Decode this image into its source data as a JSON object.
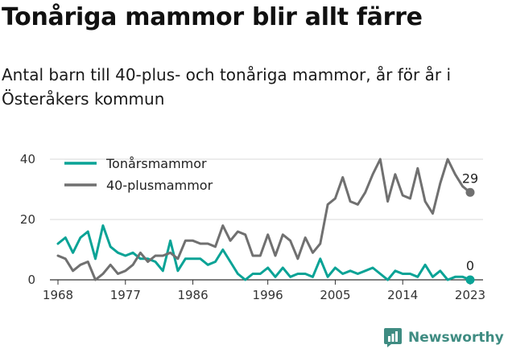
{
  "title": "Tonåriga mammor blir allt färre",
  "subtitle": "Antal barn till 40-plus- och tonåriga mammor, år för år i Österåkers kommun",
  "brand": {
    "name": "Newsworthy",
    "icon": "bar-chart-logo-icon"
  },
  "chart_data": {
    "type": "line",
    "title": "",
    "xlabel": "",
    "ylabel": "",
    "xlim": [
      1968,
      2023
    ],
    "ylim": [
      0,
      40
    ],
    "yticks": [
      0,
      20,
      40
    ],
    "xticks": [
      1968,
      1977,
      1986,
      1996,
      2005,
      2014,
      2023
    ],
    "grid": "horizontal",
    "legend_position": "top-left",
    "x": [
      1968,
      1969,
      1970,
      1971,
      1972,
      1973,
      1974,
      1975,
      1976,
      1977,
      1978,
      1979,
      1980,
      1981,
      1982,
      1983,
      1984,
      1985,
      1986,
      1987,
      1988,
      1989,
      1990,
      1991,
      1992,
      1993,
      1994,
      1995,
      1996,
      1997,
      1998,
      1999,
      2000,
      2001,
      2002,
      2003,
      2004,
      2005,
      2006,
      2007,
      2008,
      2009,
      2010,
      2011,
      2012,
      2013,
      2014,
      2015,
      2016,
      2017,
      2018,
      2019,
      2020,
      2021,
      2022,
      2023
    ],
    "series": [
      {
        "name": "Tonårsmammor",
        "color": "#0aa396",
        "values": [
          12,
          14,
          9,
          14,
          16,
          7,
          18,
          11,
          9,
          8,
          9,
          7,
          7,
          6,
          3,
          13,
          3,
          7,
          7,
          7,
          5,
          6,
          10,
          6,
          2,
          0,
          2,
          2,
          4,
          1,
          4,
          1,
          2,
          2,
          1,
          7,
          1,
          4,
          2,
          3,
          2,
          3,
          4,
          2,
          0,
          3,
          2,
          2,
          1,
          5,
          1,
          3,
          0,
          1,
          1,
          0
        ],
        "end_label": "0"
      },
      {
        "name": "40-plusmammor",
        "color": "#707070",
        "values": [
          8,
          7,
          3,
          5,
          6,
          0,
          2,
          5,
          2,
          3,
          5,
          9,
          6,
          8,
          8,
          9,
          7,
          13,
          13,
          12,
          12,
          11,
          18,
          13,
          16,
          15,
          8,
          8,
          15,
          8,
          15,
          13,
          7,
          14,
          9,
          12,
          25,
          27,
          34,
          26,
          25,
          29,
          35,
          40,
          26,
          35,
          28,
          27,
          37,
          26,
          22,
          32,
          40,
          35,
          31,
          29
        ],
        "end_label": "29"
      }
    ]
  }
}
